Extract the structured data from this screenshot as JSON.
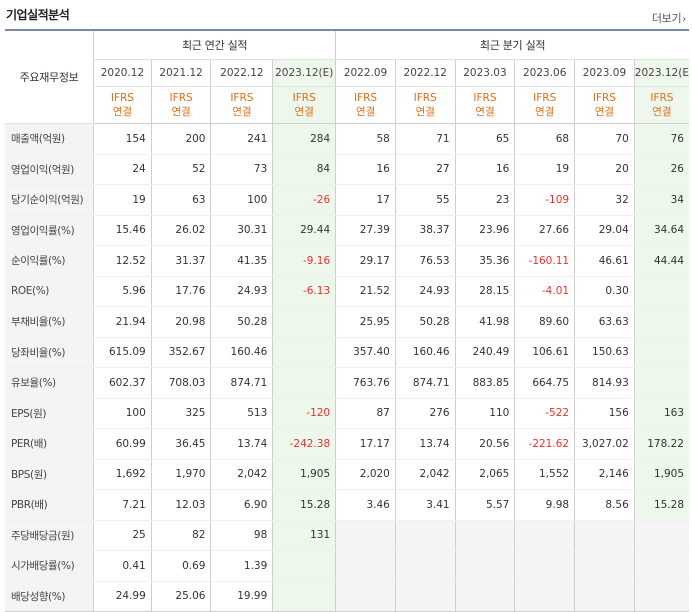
{
  "header": {
    "title": "기업실적분석",
    "more_label": "더보기",
    "more_arrow": "›"
  },
  "table": {
    "row_label_header": "주요재무정보",
    "annual_group": "최근 연간 실적",
    "quarter_group": "최근 분기 실적",
    "annual_periods": [
      "2020.12",
      "2021.12",
      "2022.12",
      "2023.12(E)"
    ],
    "quarter_periods": [
      "2022.09",
      "2022.12",
      "2023.03",
      "2023.06",
      "2023.09",
      "2023.12(E)"
    ],
    "basis_line1": "IFRS",
    "basis_line2": "연결",
    "colors": {
      "estimate_bg": "#eef7ec",
      "negative": "#e8312c",
      "ifrs": "#e06d17",
      "header_border": "#7a8aa6"
    },
    "rows": [
      {
        "label": "매출액(억원)",
        "annual": [
          "154",
          "200",
          "241",
          "284"
        ],
        "quarter": [
          "58",
          "71",
          "65",
          "68",
          "70",
          "76"
        ]
      },
      {
        "label": "영업이익(억원)",
        "annual": [
          "24",
          "52",
          "73",
          "84"
        ],
        "quarter": [
          "16",
          "27",
          "16",
          "19",
          "20",
          "26"
        ]
      },
      {
        "label": "당기순이익(억원)",
        "annual": [
          "19",
          "63",
          "100",
          "-26"
        ],
        "quarter": [
          "17",
          "55",
          "23",
          "-109",
          "32",
          "34"
        ]
      },
      {
        "label": "영업이익률(%)",
        "annual": [
          "15.46",
          "26.02",
          "30.31",
          "29.44"
        ],
        "quarter": [
          "27.39",
          "38.37",
          "23.96",
          "27.66",
          "29.04",
          "34.64"
        ]
      },
      {
        "label": "순이익률(%)",
        "annual": [
          "12.52",
          "31.37",
          "41.35",
          "-9.16"
        ],
        "quarter": [
          "29.17",
          "76.53",
          "35.36",
          "-160.11",
          "46.61",
          "44.44"
        ]
      },
      {
        "label": "ROE(%)",
        "annual": [
          "5.96",
          "17.76",
          "24.93",
          "-6.13"
        ],
        "quarter": [
          "21.52",
          "24.93",
          "28.15",
          "-4.01",
          "0.30",
          ""
        ]
      },
      {
        "label": "부채비율(%)",
        "annual": [
          "21.94",
          "20.98",
          "50.28",
          ""
        ],
        "quarter": [
          "25.95",
          "50.28",
          "41.98",
          "89.60",
          "63.63",
          ""
        ]
      },
      {
        "label": "당좌비율(%)",
        "annual": [
          "615.09",
          "352.67",
          "160.46",
          ""
        ],
        "quarter": [
          "357.40",
          "160.46",
          "240.49",
          "106.61",
          "150.63",
          ""
        ]
      },
      {
        "label": "유보율(%)",
        "annual": [
          "602.37",
          "708.03",
          "874.71",
          ""
        ],
        "quarter": [
          "763.76",
          "874.71",
          "883.85",
          "664.75",
          "814.93",
          ""
        ]
      },
      {
        "label": "EPS(원)",
        "annual": [
          "100",
          "325",
          "513",
          "-120"
        ],
        "quarter": [
          "87",
          "276",
          "110",
          "-522",
          "156",
          "163"
        ]
      },
      {
        "label": "PER(배)",
        "annual": [
          "60.99",
          "36.45",
          "13.74",
          "-242.38"
        ],
        "quarter": [
          "17.17",
          "13.74",
          "20.56",
          "-221.62",
          "3,027.02",
          "178.22"
        ]
      },
      {
        "label": "BPS(원)",
        "annual": [
          "1,692",
          "1,970",
          "2,042",
          "1,905"
        ],
        "quarter": [
          "2,020",
          "2,042",
          "2,065",
          "1,552",
          "2,146",
          "1,905"
        ]
      },
      {
        "label": "PBR(배)",
        "annual": [
          "7.21",
          "12.03",
          "6.90",
          "15.28"
        ],
        "quarter": [
          "3.46",
          "3.41",
          "5.57",
          "9.98",
          "8.56",
          "15.28"
        ]
      },
      {
        "label": "주당배당금(원)",
        "annual": [
          "25",
          "82",
          "98",
          "131"
        ],
        "quarter": [
          "",
          "",
          "",
          "",
          "",
          ""
        ]
      },
      {
        "label": "시가배당률(%)",
        "annual": [
          "0.41",
          "0.69",
          "1.39",
          ""
        ],
        "quarter": [
          "",
          "",
          "",
          "",
          "",
          ""
        ]
      },
      {
        "label": "배당성향(%)",
        "annual": [
          "24.99",
          "25.06",
          "19.99",
          ""
        ],
        "quarter": [
          "",
          "",
          "",
          "",
          "",
          ""
        ]
      }
    ]
  }
}
